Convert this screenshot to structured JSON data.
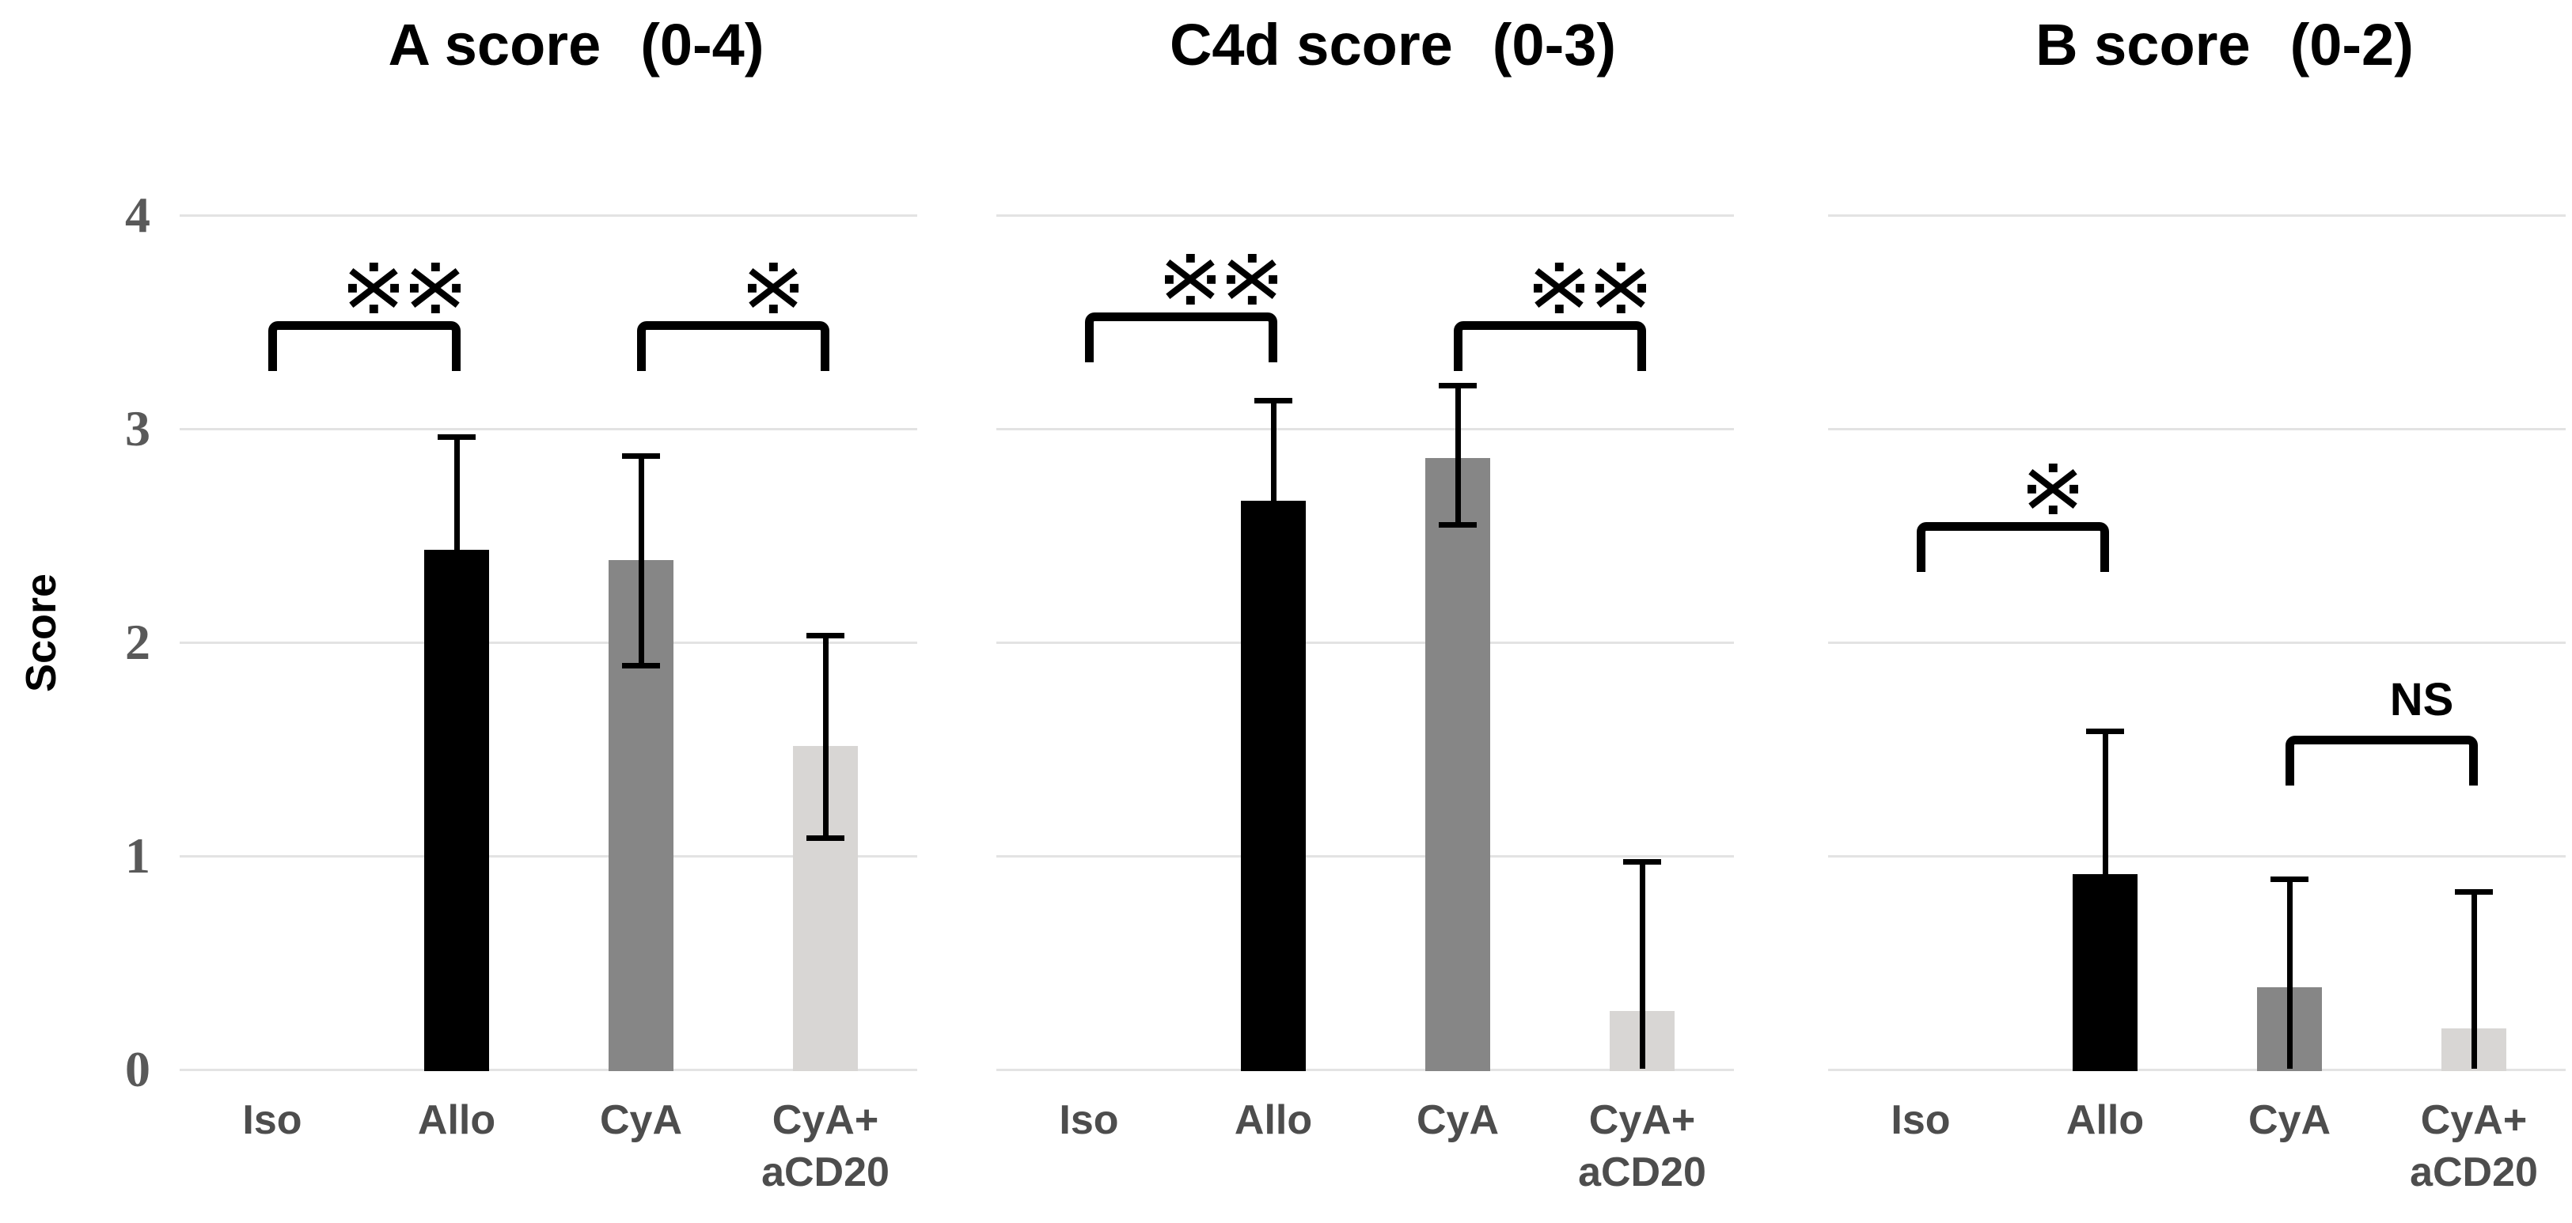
{
  "figure_type": "three-panel bar chart with error bars and significance brackets",
  "y_axis": {
    "title": "Score",
    "tick_labels": [
      "4",
      "3",
      "2",
      "1",
      "0"
    ],
    "tick_values": [
      4,
      3,
      2,
      1,
      0
    ],
    "min": 0,
    "max": 4
  },
  "styles": {
    "background": "#ffffff",
    "gridline_color": "#e3e3e3",
    "axis_text_color": "#595959",
    "x_label_color": "#4d4d4d",
    "title_color": "#000000",
    "significance_color": "#000000",
    "bar_colors_by_group": {
      "Iso": "none",
      "Allo": "#000000",
      "CyA": "#868686",
      "CyA+aCD20": "#d8d6d4"
    }
  },
  "chart_data": [
    {
      "type": "bar",
      "title": "A score  (0-4)",
      "title_main": "A score",
      "title_range": "(0-4)",
      "ylabel": "Score",
      "ylim": [
        0,
        4
      ],
      "grid": true,
      "categories": [
        "Iso",
        "Allo",
        "CyA",
        "CyA+aCD20"
      ],
      "category_label_lines": [
        [
          "Iso"
        ],
        [
          "Allo"
        ],
        [
          "CyA"
        ],
        [
          "CyA+",
          "aCD20"
        ]
      ],
      "values": [
        0,
        2.43,
        2.38,
        1.51
      ],
      "bar_colors": [
        "none",
        "#000000",
        "#868686",
        "#d8d6d4"
      ],
      "error_bars": [
        null,
        {
          "low": 2.43,
          "high": 2.96,
          "cap_low": false,
          "cap_high": true
        },
        {
          "low": 1.89,
          "high": 2.87,
          "cap_low": true,
          "cap_high": true
        },
        {
          "low": 1.08,
          "high": 2.03,
          "cap_low": true,
          "cap_high": true
        }
      ],
      "significance": [
        {
          "between": [
            "Iso",
            "Allo"
          ],
          "from_index": 0,
          "to_index": 1,
          "label": "※※",
          "score_y": 3.5
        },
        {
          "between": [
            "CyA",
            "CyA+aCD20"
          ],
          "from_index": 2,
          "to_index": 3,
          "label": "※",
          "score_y": 3.5
        }
      ]
    },
    {
      "type": "bar",
      "title": "C4d score  (0-3)",
      "title_main": "C4d score",
      "title_range": "(0-3)",
      "ylabel": "Score",
      "ylim": [
        0,
        4
      ],
      "grid": true,
      "categories": [
        "Iso",
        "Allo",
        "CyA",
        "CyA+aCD20"
      ],
      "category_label_lines": [
        [
          "Iso"
        ],
        [
          "Allo"
        ],
        [
          "CyA"
        ],
        [
          "CyA+",
          "aCD20"
        ]
      ],
      "values": [
        0,
        2.66,
        2.86,
        0.27
      ],
      "bar_colors": [
        "none",
        "#000000",
        "#868686",
        "#d8d6d4"
      ],
      "error_bars": [
        null,
        {
          "low": 2.66,
          "high": 3.13,
          "cap_low": false,
          "cap_high": true
        },
        {
          "low": 2.55,
          "high": 3.2,
          "cap_low": true,
          "cap_high": true
        },
        {
          "low": 0,
          "high": 0.97,
          "cap_low": false,
          "cap_high": true
        }
      ],
      "significance": [
        {
          "between": [
            "Iso",
            "Allo"
          ],
          "from_index": 0,
          "to_index": 1,
          "label": "※※",
          "score_y": 3.54
        },
        {
          "between": [
            "CyA",
            "CyA+aCD20"
          ],
          "from_index": 2,
          "to_index": 3,
          "label": "※※",
          "score_y": 3.5
        }
      ]
    },
    {
      "type": "bar",
      "title": "B score  (0-2)",
      "title_main": "B score",
      "title_range": "(0-2)",
      "ylabel": "Score",
      "ylim": [
        0,
        4
      ],
      "grid": true,
      "categories": [
        "Iso",
        "Allo",
        "CyA",
        "CyA+aCD20"
      ],
      "category_label_lines": [
        [
          "Iso"
        ],
        [
          "Allo"
        ],
        [
          "CyA"
        ],
        [
          "CyA+",
          "aCD20"
        ]
      ],
      "values": [
        0,
        0.91,
        0.38,
        0.19
      ],
      "bar_colors": [
        "none",
        "#000000",
        "#868686",
        "#d8d6d4"
      ],
      "error_bars": [
        null,
        {
          "low": 0.91,
          "high": 1.58,
          "cap_low": false,
          "cap_high": true
        },
        {
          "low": 0,
          "high": 0.89,
          "cap_low": false,
          "cap_high": true
        },
        {
          "low": 0,
          "high": 0.83,
          "cap_low": false,
          "cap_high": true
        }
      ],
      "significance": [
        {
          "between": [
            "Iso",
            "Allo"
          ],
          "from_index": 0,
          "to_index": 1,
          "label": "※",
          "score_y": 2.56
        },
        {
          "between": [
            "CyA",
            "CyA+aCD20"
          ],
          "from_index": 2,
          "to_index": 3,
          "label": "NS",
          "score_y": 1.56
        }
      ]
    }
  ]
}
